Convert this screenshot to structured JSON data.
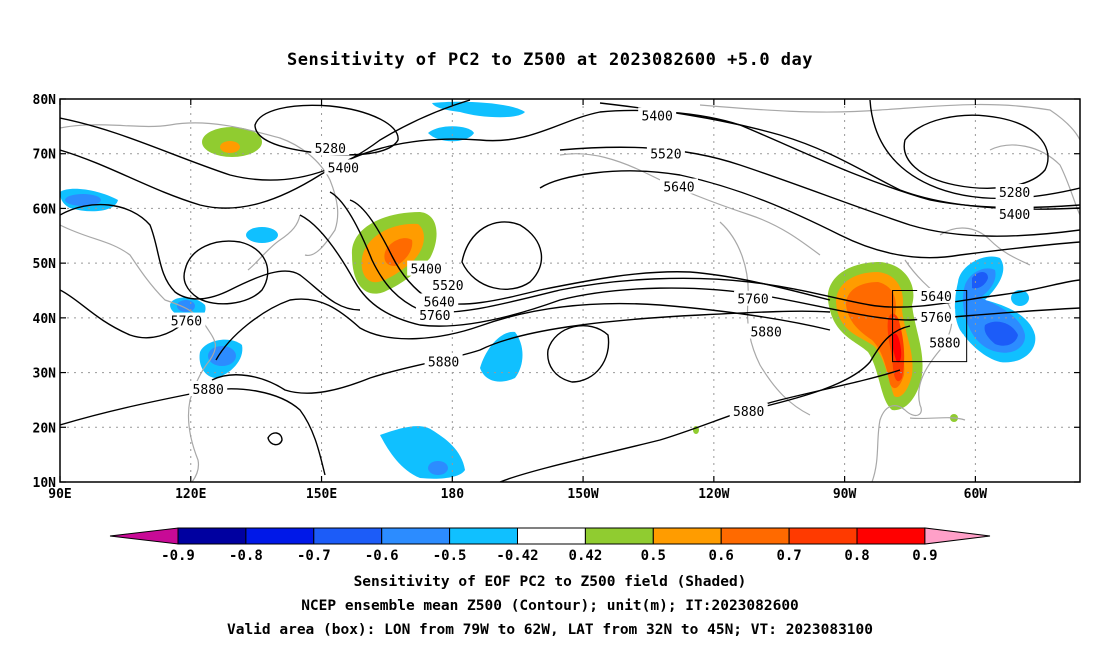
{
  "title": "Sensitivity of PC2 to Z500 at 2023082600 +5.0 day",
  "map": {
    "lon_ticks": [
      {
        "lon": 90,
        "label": "90E"
      },
      {
        "lon": 120,
        "label": "120E"
      },
      {
        "lon": 150,
        "label": "150E"
      },
      {
        "lon": 180,
        "label": "180"
      },
      {
        "lon": 210,
        "label": "150W"
      },
      {
        "lon": 240,
        "label": "120W"
      },
      {
        "lon": 270,
        "label": "90W"
      },
      {
        "lon": 300,
        "label": "60W"
      }
    ],
    "lat_ticks": [
      {
        "lat": 80,
        "label": "80N"
      },
      {
        "lat": 70,
        "label": "70N"
      },
      {
        "lat": 60,
        "label": "60N"
      },
      {
        "lat": 50,
        "label": "50N"
      },
      {
        "lat": 40,
        "label": "40N"
      },
      {
        "lat": 30,
        "label": "30N"
      },
      {
        "lat": 20,
        "label": "20N"
      },
      {
        "lat": 10,
        "label": "10N"
      }
    ],
    "lon_range": [
      90,
      324
    ],
    "lat_range": [
      10,
      80
    ],
    "valid_box": {
      "lon_min": 281,
      "lon_max": 298,
      "lat_min": 32,
      "lat_max": 45
    },
    "contour_labels": [
      {
        "text": "5400",
        "lon": 227,
        "lat": 77
      },
      {
        "text": "5280",
        "lon": 152,
        "lat": 71
      },
      {
        "text": "5400",
        "lon": 155,
        "lat": 67.5
      },
      {
        "text": "5520",
        "lon": 229,
        "lat": 70
      },
      {
        "text": "5640",
        "lon": 232,
        "lat": 64
      },
      {
        "text": "5280",
        "lon": 309,
        "lat": 63
      },
      {
        "text": "5400",
        "lon": 309,
        "lat": 59
      },
      {
        "text": "5400",
        "lon": 174,
        "lat": 49
      },
      {
        "text": "5520",
        "lon": 179,
        "lat": 46
      },
      {
        "text": "5640",
        "lon": 177,
        "lat": 43
      },
      {
        "text": "5760",
        "lon": 176,
        "lat": 40.5
      },
      {
        "text": "5760",
        "lon": 249,
        "lat": 43.5
      },
      {
        "text": "5880",
        "lon": 252,
        "lat": 37.5
      },
      {
        "text": "5880",
        "lon": 178,
        "lat": 32
      },
      {
        "text": "5760",
        "lon": 119,
        "lat": 39.5
      },
      {
        "text": "5880",
        "lon": 124,
        "lat": 27
      },
      {
        "text": "5880",
        "lon": 248,
        "lat": 23
      },
      {
        "text": "5640",
        "lon": 291,
        "lat": 44
      },
      {
        "text": "5760",
        "lon": 291,
        "lat": 40.2
      },
      {
        "text": "5880",
        "lon": 293,
        "lat": 35.5
      }
    ]
  },
  "colorbar": {
    "labels": [
      "-0.9",
      "-0.8",
      "-0.7",
      "-0.6",
      "-0.5",
      "-0.42",
      "0.42",
      "0.5",
      "0.6",
      "0.7",
      "0.8",
      "0.9"
    ],
    "colors": [
      "#0000a0",
      "#0018e8",
      "#1c5cf8",
      "#2c8cff",
      "#10c0ff",
      "#ffffff",
      "#90cc30",
      "#ff9c00",
      "#ff6a00",
      "#ff3a00",
      "#ff0000"
    ],
    "low_extend_color": "#c80a96",
    "high_extend_color": "#ffa0c8"
  },
  "captions": {
    "line1": "Sensitivity of EOF PC2 to Z500 field (Shaded)",
    "line2": "NCEP ensemble mean Z500 (Contour); unit(m); IT:2023082600",
    "line3": "Valid area (box): LON from 79W to 62W, LAT from 32N to 45N; VT: 2023083100"
  }
}
